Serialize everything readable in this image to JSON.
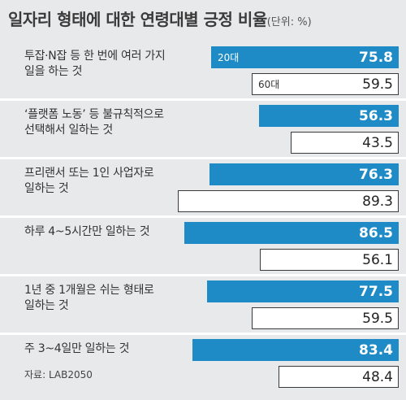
{
  "chart_title": "일자리 형태에 대한 연령대별 긍정 비율",
  "unit": "(단위: %)",
  "source": "자료: LAB2050",
  "colors": {
    "series_20": "#1f8bc6",
    "series_60": "#ffffff",
    "background": "#e8e9eb"
  },
  "chart_data": {
    "type": "bar",
    "orientation": "horizontal",
    "title": "일자리 형태에 대한 연령대별 긍정 비율",
    "unit": "%",
    "categories": [
      "투잡·N잡 등 한 번에 여러 가지 일을 하는 것",
      "‘플랫폼 노동’ 등 불규칙적으로 선택해서 일하는 것",
      "프리랜서 또는 1인 사업자로 일하는 것",
      "하루 4~5시간만 일하는 것",
      "1년 중 1개월은 쉬는 형태로 일하는 것",
      "주 3~4일만 일하는 것"
    ],
    "series": [
      {
        "name": "20대",
        "values": [
          75.8,
          56.3,
          76.3,
          86.5,
          77.5,
          83.4
        ]
      },
      {
        "name": "60대",
        "values": [
          59.5,
          43.5,
          89.3,
          56.1,
          59.5,
          48.4
        ]
      }
    ],
    "legend": "inside-first-bars"
  }
}
